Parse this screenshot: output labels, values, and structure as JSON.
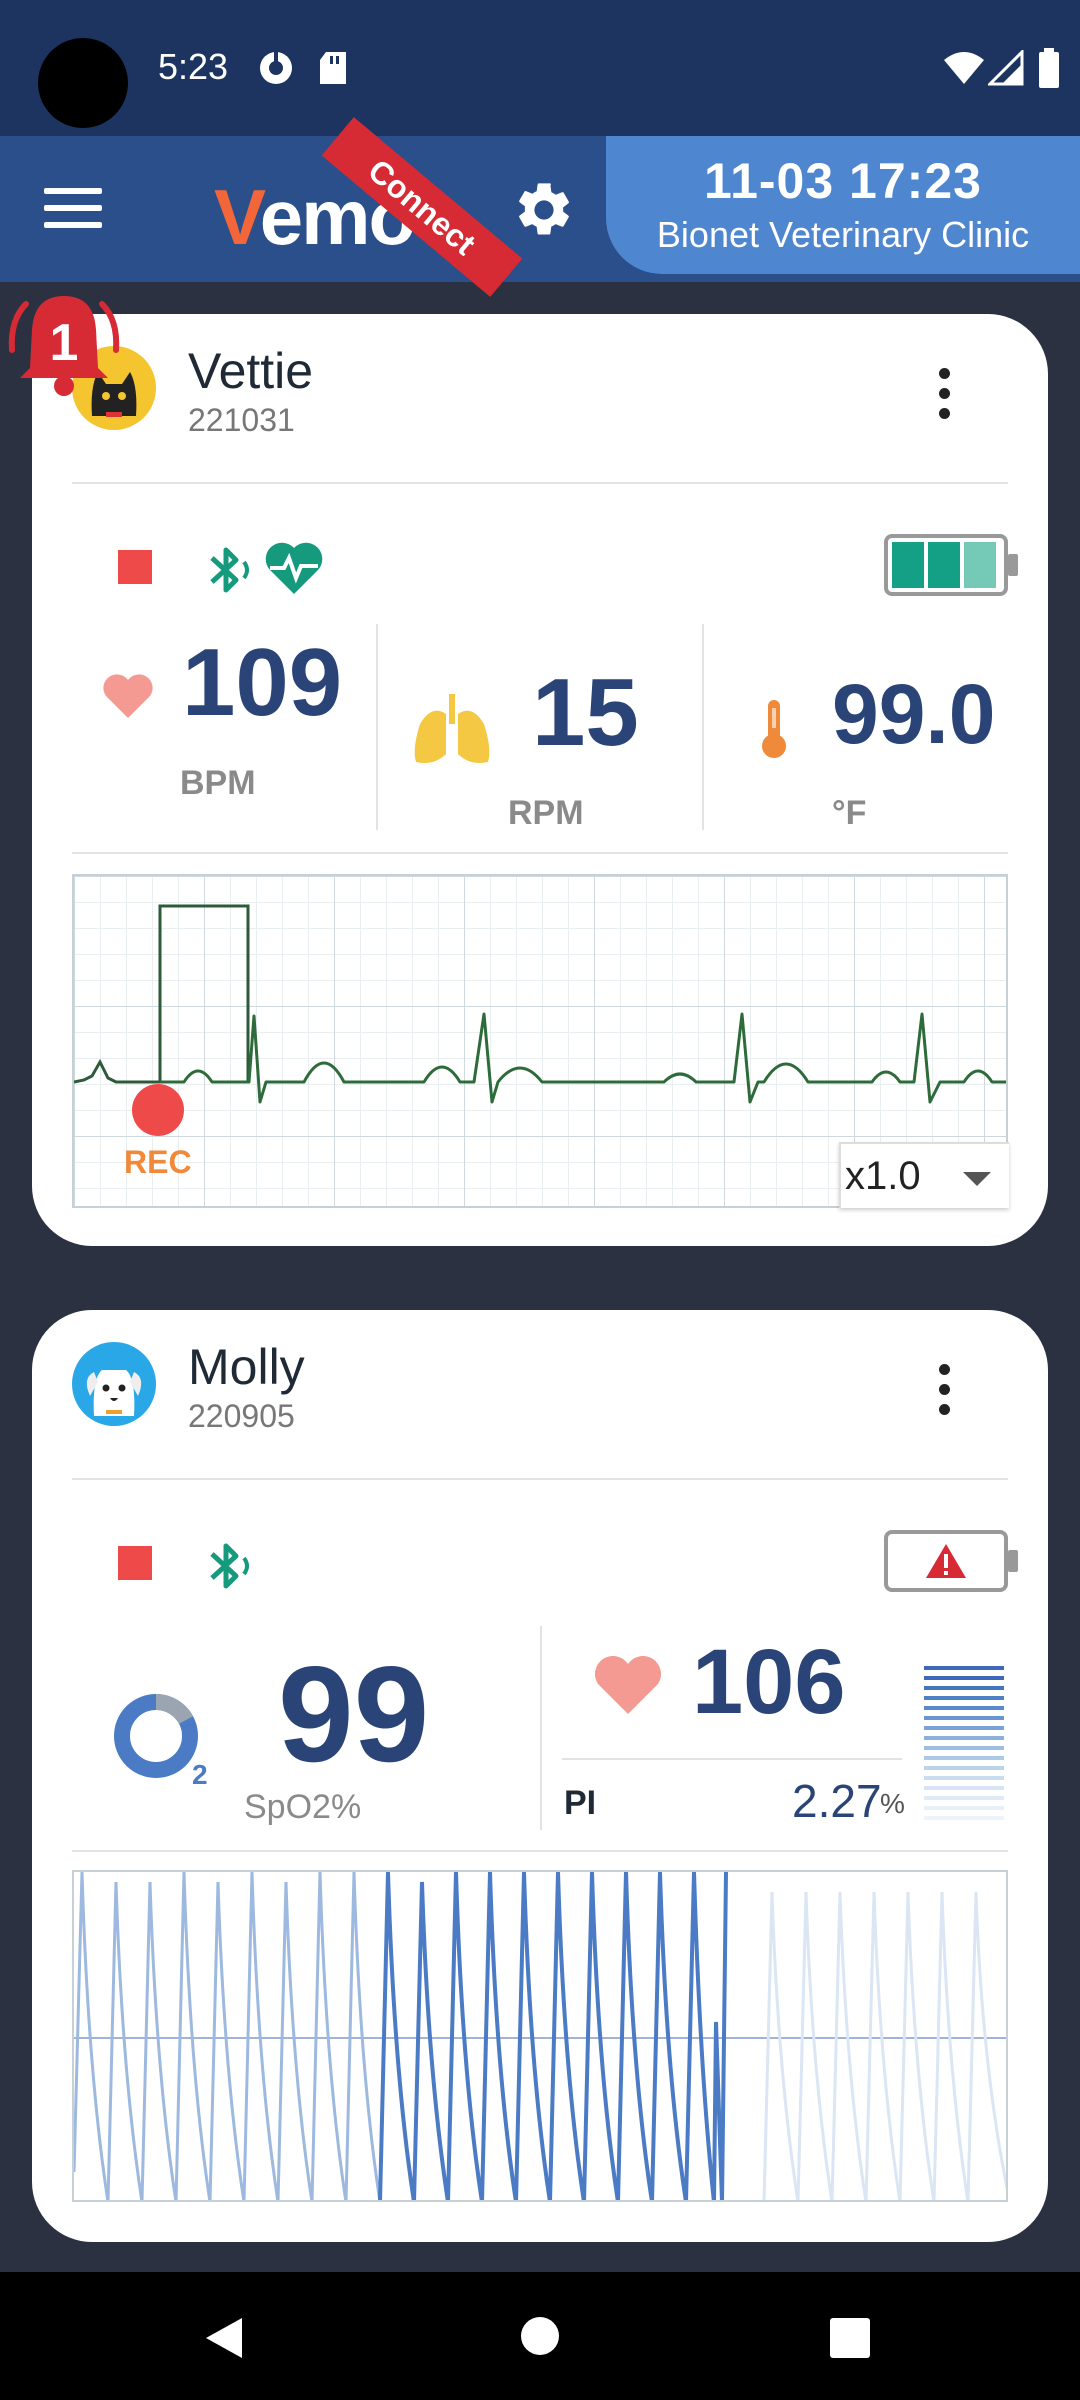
{
  "status_bar": {
    "time": "5:23"
  },
  "app_bar": {
    "logo_prefix": "V",
    "logo_rest": "emo",
    "ribbon_label": "Connect",
    "date_time": "11-03 17:23",
    "clinic": "Bionet Veterinary Clinic"
  },
  "patients": [
    {
      "alarm_count": "1",
      "name": "Vettie",
      "id": "221031",
      "hr": {
        "value": "109",
        "unit": "BPM"
      },
      "resp": {
        "value": "15",
        "unit": "RPM"
      },
      "temp": {
        "value": "99.0",
        "unit": "°F"
      },
      "battery_level": 1.0,
      "rec_label": "REC",
      "speed": "x1.0"
    },
    {
      "name": "Molly",
      "id": "220905",
      "spo2": {
        "value": "99",
        "unit": "SpO2%",
        "subscript": "2"
      },
      "pulse": {
        "value": "106"
      },
      "pi": {
        "label": "PI",
        "value": "2.27",
        "unit": "%"
      },
      "battery_status": "warning"
    }
  ],
  "colors": {
    "accent": "#2a4f8a",
    "value_text": "#2b4477",
    "stop": "#ef4a4a",
    "bluetooth": "#159a7e",
    "ecg": "#2e6b3a",
    "pleth": "#4a7bc4"
  }
}
